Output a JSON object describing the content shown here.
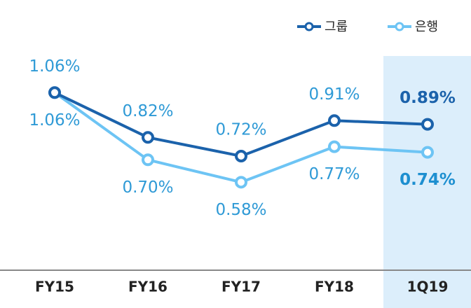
{
  "chart_data": {
    "type": "line",
    "categories": [
      "FY15",
      "FY16",
      "FY17",
      "FY18",
      "1Q19"
    ],
    "highlight": "1Q19",
    "series": [
      {
        "name": "그룹",
        "color": "#1b62ab",
        "values": [
          1.06,
          0.82,
          0.72,
          0.91,
          0.89
        ],
        "value_labels": [
          "1.06%",
          "0.82%",
          "0.72%",
          "0.91%",
          "0.89%"
        ]
      },
      {
        "name": "은행",
        "color": "#6dc4f4",
        "values": [
          1.06,
          0.7,
          0.58,
          0.77,
          0.74
        ],
        "value_labels": [
          "1.06%",
          "0.70%",
          "0.58%",
          "0.77%",
          "0.74%"
        ]
      }
    ]
  }
}
